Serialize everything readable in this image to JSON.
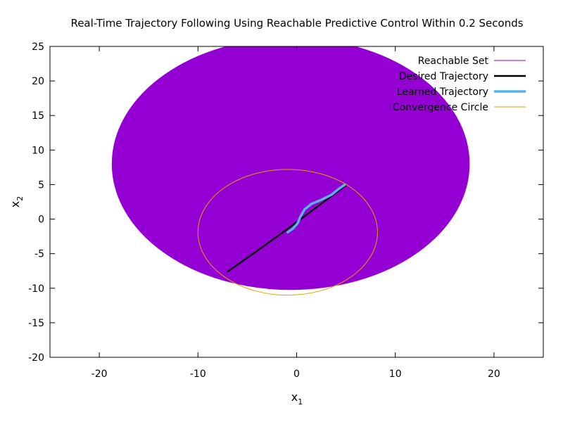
{
  "chart_data": {
    "type": "line",
    "title": "Real-Time Trajectory Following Using Reachable Predictive Control Within 0.2 Seconds",
    "xlabel": "x",
    "xlabel_sub": "1",
    "ylabel": "x",
    "ylabel_sub": "2",
    "xlim": [
      -25,
      25
    ],
    "ylim": [
      -20,
      25
    ],
    "x_ticks": [
      -20,
      -10,
      0,
      10,
      20
    ],
    "y_ticks": [
      -20,
      -15,
      -10,
      -5,
      0,
      5,
      10,
      15,
      20,
      25
    ],
    "grid": false,
    "legend_position": "top-right",
    "series": [
      {
        "name": "Reachable Set",
        "kind": "filled-ellipse",
        "color": "#9400d3",
        "center": [
          -0.6,
          8
        ],
        "radius_x": 18.1,
        "radius_y": 18.2
      },
      {
        "name": "Desired Trajectory",
        "kind": "line",
        "color": "#000000",
        "x": [
          -7,
          -4,
          -1,
          2,
          5
        ],
        "y": [
          -7.6,
          -4.6,
          -1.5,
          1.7,
          4.9
        ]
      },
      {
        "name": "Learned Trajectory",
        "kind": "line",
        "color": "#56b4e9",
        "x": [
          -0.9,
          -0.4,
          0.1,
          0.4,
          0.8,
          1.5,
          2.5,
          3.5,
          4.3,
          4.9
        ],
        "y": [
          -1.9,
          -1.4,
          -0.6,
          0.4,
          1.4,
          2.2,
          2.8,
          3.5,
          4.4,
          5.0
        ]
      },
      {
        "name": "Convergence Circle",
        "kind": "circle",
        "color": "#e69f00",
        "center": [
          -0.9,
          -1.9
        ],
        "radius_x": 9.1,
        "radius_y": 9.1
      }
    ]
  }
}
